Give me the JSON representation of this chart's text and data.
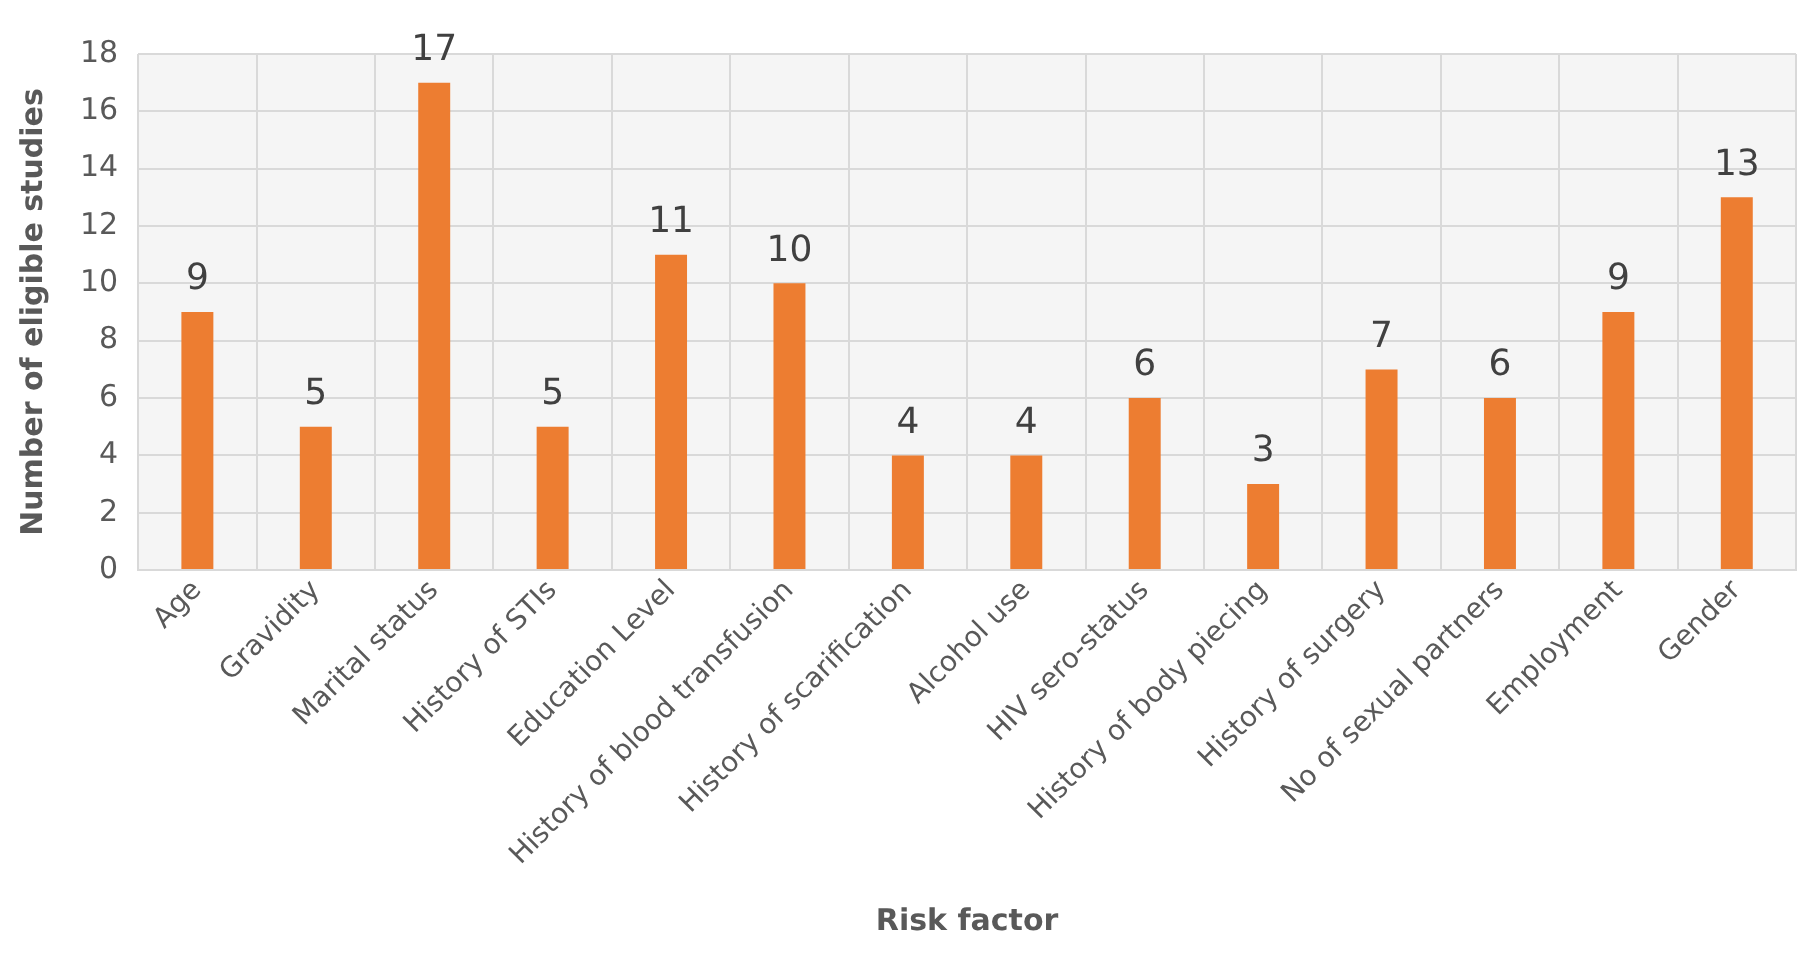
{
  "chart_data": {
    "type": "bar",
    "xlabel": "Risk factor",
    "ylabel": "Number of eligible studies",
    "categories": [
      "Age",
      "Gravidity",
      "Marital status",
      "History of STIs",
      "Education Level",
      "History of blood transfusion",
      "History of scarification",
      "Alcohol use",
      "HIV sero-status",
      "History of body piecing",
      "History of surgery",
      "No of sexual partners",
      "Employment",
      "Gender"
    ],
    "values": [
      9,
      5,
      17,
      5,
      11,
      10,
      4,
      4,
      6,
      3,
      7,
      6,
      9,
      13
    ],
    "color": "#ed7d31",
    "ylim": [
      0,
      18
    ],
    "yticks": [
      0,
      2,
      4,
      6,
      8,
      10,
      12,
      14,
      16,
      18
    ],
    "grid": true,
    "legend": false,
    "data_labels": true
  }
}
